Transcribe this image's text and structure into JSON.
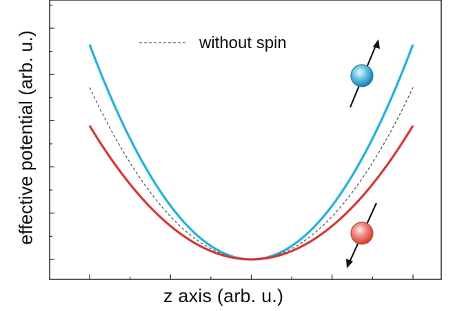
{
  "chart_data": {
    "type": "line",
    "title": "",
    "xlabel": "z axis   (arb. u.)",
    "ylabel": "effective potential (arb. u.)",
    "xlim": [
      -1,
      1
    ],
    "ylim": [
      0,
      1
    ],
    "grid": false,
    "legend": {
      "position": "top-left",
      "entries": [
        "without spin"
      ]
    },
    "series": [
      {
        "name": "",
        "color": "#18b4e8",
        "style": "solid",
        "x": [
          -1,
          -0.75,
          -0.5,
          -0.25,
          0,
          0.25,
          0.5,
          0.75,
          1
        ],
        "y": [
          0.9,
          0.58,
          0.3,
          0.1,
          0.0,
          0.1,
          0.3,
          0.58,
          0.9
        ]
      },
      {
        "name": "without spin",
        "color": "#555555",
        "style": "dashed",
        "x": [
          -1,
          -0.75,
          -0.5,
          -0.25,
          0,
          0.25,
          0.5,
          0.75,
          1
        ],
        "y": [
          0.72,
          0.44,
          0.21,
          0.06,
          0.0,
          0.06,
          0.21,
          0.44,
          0.72
        ]
      },
      {
        "name": "",
        "color": "#e8302a",
        "style": "solid",
        "x": [
          -1,
          -0.75,
          -0.5,
          -0.25,
          0,
          0.25,
          0.5,
          0.75,
          1
        ],
        "y": [
          0.56,
          0.31,
          0.14,
          0.04,
          0.0,
          0.04,
          0.14,
          0.31,
          0.56
        ]
      }
    ],
    "annotations": [
      {
        "name": "spin-up-particle",
        "color": "#1a8ab8",
        "arrow": "up"
      },
      {
        "name": "spin-down-particle",
        "color": "#e0473a",
        "arrow": "down"
      }
    ]
  }
}
